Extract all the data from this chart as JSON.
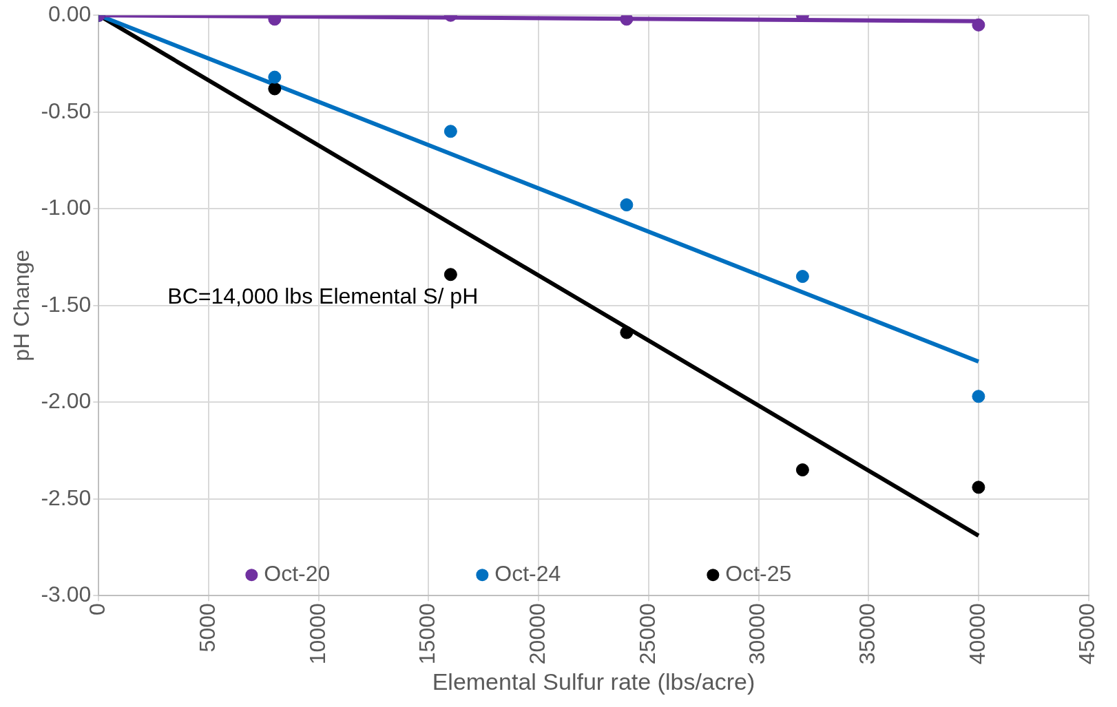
{
  "chart_data": {
    "type": "scatter",
    "xlabel": "Elemental Sulfur rate (lbs/acre)",
    "ylabel": "pH Change",
    "x": [
      0,
      8000,
      16000,
      24000,
      32000,
      40000
    ],
    "series": [
      {
        "name": "Oct-20",
        "color": "#7030a0",
        "marker": "circle",
        "values": [
          0,
          -0.02,
          0,
          -0.02,
          0,
          -0.05
        ]
      },
      {
        "name": "Oct-24",
        "color": "#0070c0",
        "marker": "circle",
        "values": [
          0,
          -0.32,
          -0.6,
          -0.98,
          -1.35,
          -1.97
        ]
      },
      {
        "name": "Oct-25",
        "color": "#000000",
        "marker": "circle",
        "values": [
          0,
          -0.38,
          -1.34,
          -1.64,
          -2.35,
          -2.44
        ]
      },
      {
        "type": "line",
        "color": "#7030a0",
        "marker": "none",
        "values": [
          0,
          null,
          null,
          null,
          null,
          -0.03
        ]
      },
      {
        "type": "line",
        "color": "#0070c0",
        "marker": "none",
        "values": [
          0,
          null,
          null,
          null,
          null,
          -1.79
        ]
      },
      {
        "type": "line",
        "color": "#000000",
        "marker": "none",
        "values": [
          0,
          null,
          null,
          null,
          null,
          -2.69
        ]
      }
    ],
    "xlim": [
      0,
      45000
    ],
    "xticks": [
      0,
      5000,
      10000,
      15000,
      20000,
      25000,
      30000,
      35000,
      40000,
      45000
    ],
    "ylim": [
      -3,
      0
    ],
    "yticks": [
      {
        "value": 0,
        "label": "0.00"
      },
      {
        "value": -0.5,
        "label": "-0.50"
      },
      {
        "value": -1,
        "label": "-1.00"
      },
      {
        "value": -1.5,
        "label": "-1.50"
      },
      {
        "value": -2,
        "label": "-2.00"
      },
      {
        "value": -2.5,
        "label": "-2.50"
      },
      {
        "value": -3,
        "label": "-3.00"
      }
    ],
    "grid": true,
    "legend": "bottom",
    "line_style": "solid",
    "annotations": [
      "BC=14,000 lbs Elemental S/ pH"
    ]
  }
}
